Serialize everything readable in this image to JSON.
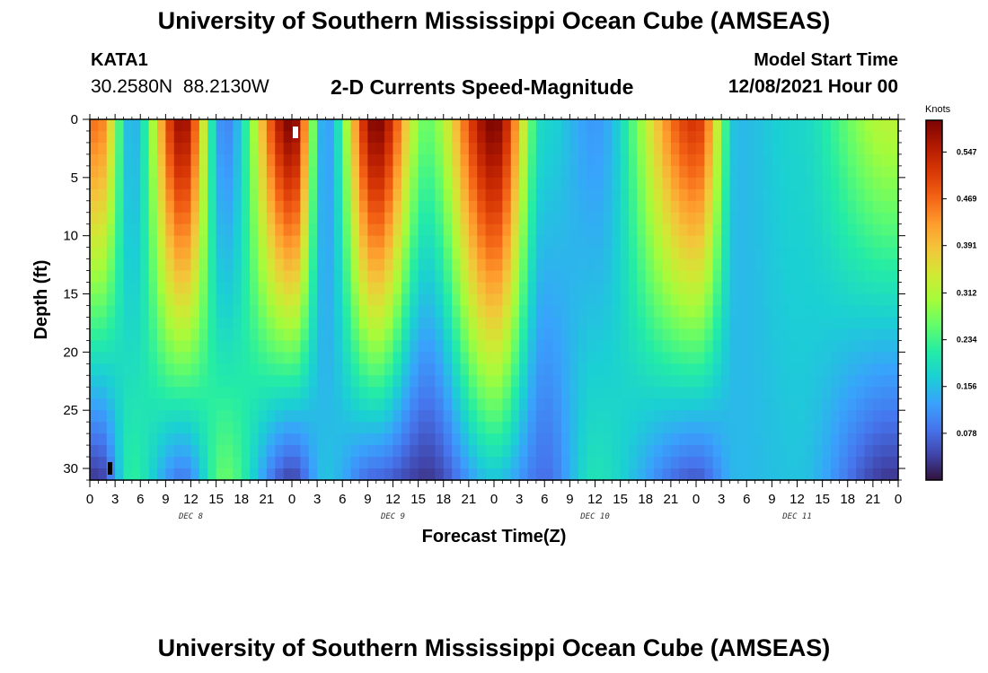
{
  "header": {
    "title": "University of Southern Mississippi Ocean Cube (AMSEAS)",
    "station": "KATA1",
    "coords": "30.2580N 88.2130W",
    "subtitle": "2-D Currents Speed-Magnitude",
    "start_label": "Model Start Time",
    "start_value": "12/08/2021 Hour 00"
  },
  "footer": {
    "title": "University of Southern Mississippi Ocean Cube (AMSEAS)"
  },
  "chart_data": {
    "type": "heatmap",
    "title": "2-D Currents Speed-Magnitude",
    "xlabel": "Forecast Time(Z)",
    "ylabel": "Depth (ft)",
    "x_range_hours": [
      0,
      96
    ],
    "y_range_ft": [
      0,
      31
    ],
    "y_reversed": true,
    "xtick_labels": [
      "0",
      "3",
      "6",
      "9",
      "12",
      "15",
      "18",
      "21",
      "0",
      "3",
      "6",
      "9",
      "12",
      "15",
      "18",
      "21",
      "0",
      "3",
      "6",
      "9",
      "12",
      "15",
      "18",
      "21",
      "0",
      "3",
      "6",
      "9",
      "12",
      "15",
      "18",
      "21",
      "0"
    ],
    "ytick_values": [
      0,
      5,
      10,
      15,
      20,
      25,
      30
    ],
    "ytick_labels": [
      "0",
      "5",
      "10",
      "15",
      "20",
      "25",
      "30"
    ],
    "date_labels": [
      "DEC 8",
      "DEC 9",
      "DEC 10",
      "DEC 11"
    ],
    "date_label_hours": [
      12,
      36,
      60,
      84
    ],
    "colorbar": {
      "label": "Knots",
      "min": 0.0,
      "max": 0.6,
      "tick_values": [
        0.078,
        0.156,
        0.234,
        0.312,
        0.391,
        0.469,
        0.547
      ],
      "tick_labels": [
        "0.078",
        "0.156",
        "0.234",
        "0.312",
        "0.391",
        "0.469",
        "0.547"
      ],
      "colors": [
        "#30123b",
        "#4145ab",
        "#4675ed",
        "#39a2fc",
        "#1bcfd4",
        "#24eca6",
        "#61fc6c",
        "#a4fc3b",
        "#d1e834",
        "#f3c63a",
        "#fe9b2d",
        "#f36315",
        "#d93806",
        "#b11901",
        "#7a0402"
      ]
    },
    "speed_model": {
      "surface_profile": [
        0.46,
        0.14,
        0.58,
        0.1,
        0.6,
        0.12,
        0.6,
        0.26,
        0.6,
        0.18,
        0.12,
        0.52,
        0.15,
        0.18,
        0.32
      ],
      "deep_profile": [
        0.03,
        0.22,
        0.09,
        0.26,
        0.04,
        0.16,
        0.07,
        0.03,
        0.16,
        0.08,
        0.2,
        0.06,
        0.15,
        0.16,
        0.03
      ],
      "anchor_hours": [
        1,
        5,
        11,
        16,
        24,
        28,
        34,
        40,
        48,
        54,
        60,
        72,
        77,
        84,
        95
      ]
    }
  }
}
